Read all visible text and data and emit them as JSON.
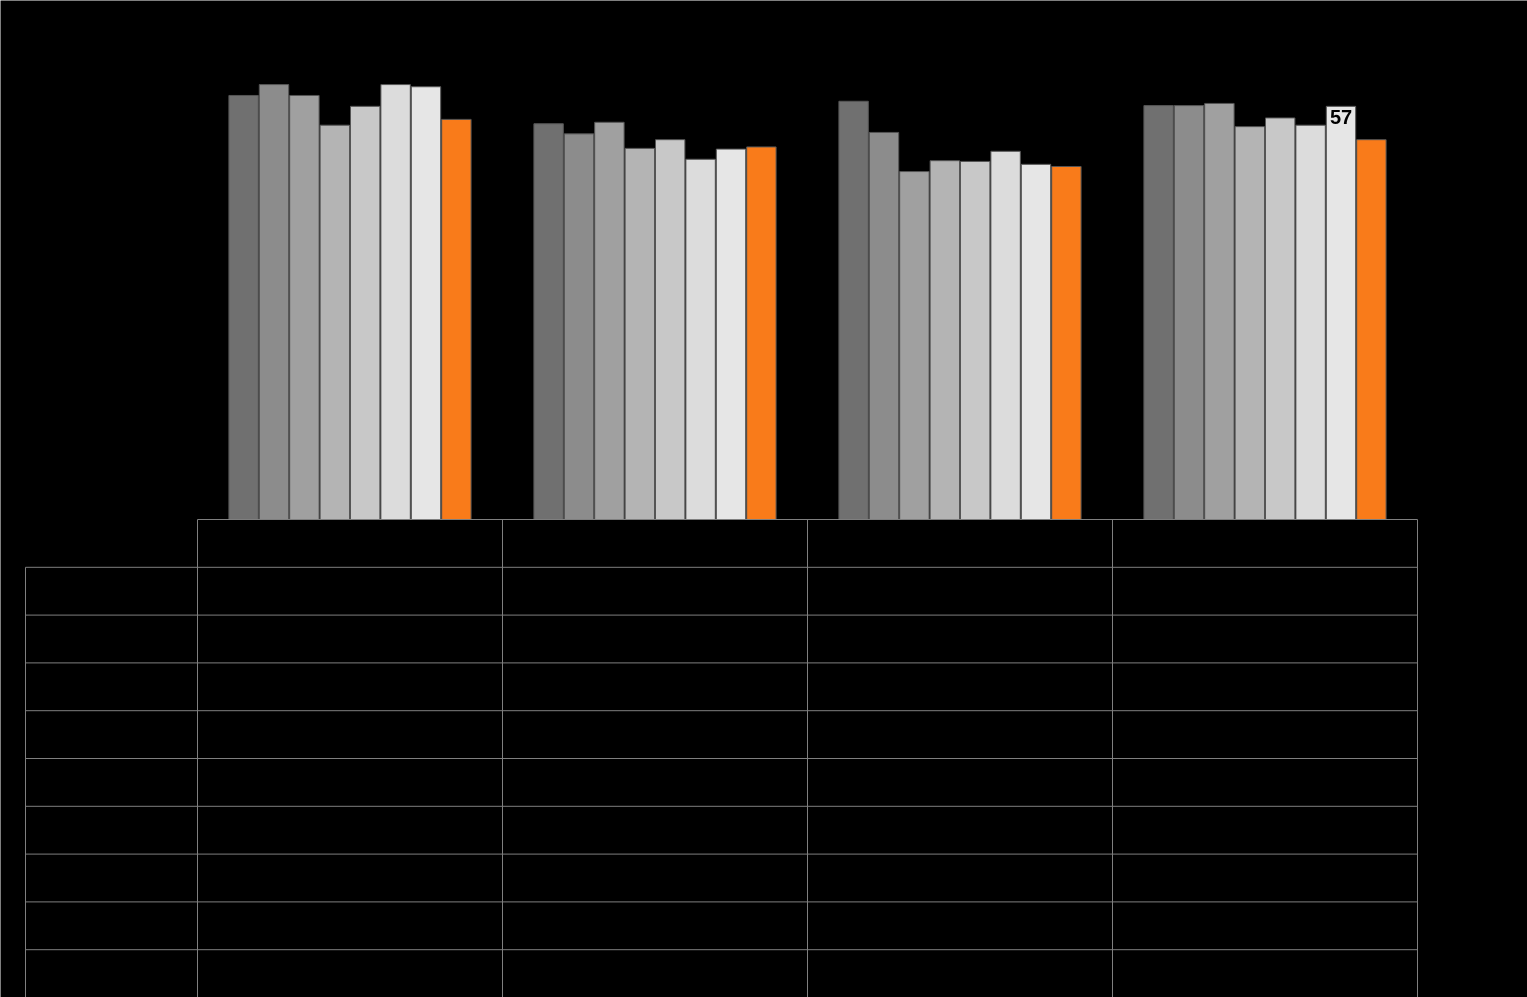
{
  "chart_data": {
    "type": "bar",
    "categories": [
      null,
      null,
      null,
      null
    ],
    "ylim": [
      0,
      71.6
    ],
    "series": [
      {
        "color": "#707070",
        "values": [
          58.5,
          54.6,
          57.7,
          57.1
        ]
      },
      {
        "color": "#8c8c8c",
        "values": [
          60,
          53.2,
          53.4,
          57.1
        ]
      },
      {
        "color": "#a0a0a0",
        "values": [
          58.5,
          54.8,
          48,
          57.4
        ]
      },
      {
        "color": "#b4b4b4",
        "values": [
          54.4,
          51.2,
          49.5,
          54.2
        ]
      },
      {
        "color": "#c8c8c8",
        "values": [
          57,
          52.4,
          49.4,
          55.4
        ]
      },
      {
        "color": "#dcdcdc",
        "values": [
          60,
          49.7,
          50.8,
          54.4
        ]
      },
      {
        "color": "#e6e6e6",
        "values": [
          59.7,
          51.1,
          49,
          57
        ],
        "value_labels": [
          null,
          null,
          null,
          "57"
        ]
      },
      {
        "color": "#f97b1a",
        "values": [
          55.2,
          51.4,
          48.7,
          52.4
        ]
      }
    ]
  }
}
